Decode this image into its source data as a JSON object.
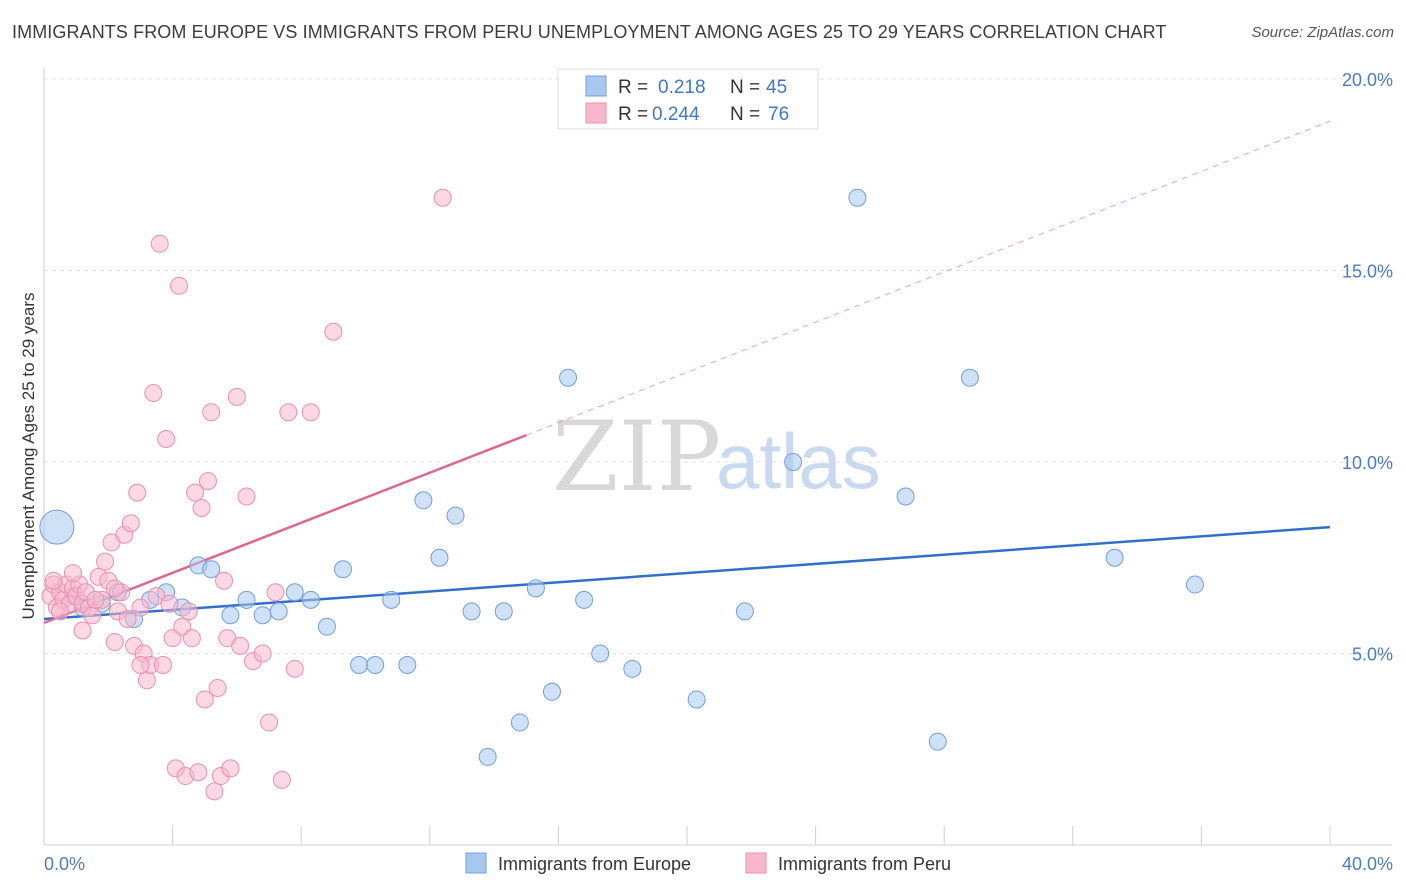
{
  "title": "IMMIGRANTS FROM EUROPE VS IMMIGRANTS FROM PERU UNEMPLOYMENT AMONG AGES 25 TO 29 YEARS CORRELATION CHART",
  "source": "Source: ZipAtlas.com",
  "watermark": {
    "zip": "ZIP",
    "atlas": "atlas"
  },
  "legend_top": {
    "rows": [
      {
        "r_label": "R =",
        "r_value": "0.218",
        "n_label": "N =",
        "n_value": "45",
        "color": "#a8c8f0"
      },
      {
        "r_label": "R =",
        "r_value": "0.244",
        "n_label": "N =",
        "n_value": "76",
        "color": "#f7b8cc"
      }
    ]
  },
  "chart_data": {
    "type": "scatter",
    "title": "IMMIGRANTS FROM EUROPE VS IMMIGRANTS FROM PERU UNEMPLOYMENT AMONG AGES 25 TO 29 YEARS CORRELATION CHART",
    "xlabel": "",
    "ylabel": "Unemployment Among Ages 25 to 29 years",
    "xlim": [
      0,
      40
    ],
    "ylim": [
      0,
      20
    ],
    "x_tick_labels": [
      "0.0%",
      "40.0%"
    ],
    "y_ticks": [
      5,
      10,
      15,
      20
    ],
    "y_tick_labels": [
      "5.0%",
      "10.0%",
      "15.0%",
      "20.0%"
    ],
    "grid": true,
    "legend_position": "top-center",
    "series": [
      {
        "name": "Immigrants from Europe",
        "color": "#a8c8f0",
        "stroke": "#6f9fe0",
        "trend": {
          "x": [
            0,
            40
          ],
          "y": [
            5.9,
            8.3
          ],
          "color": "#3070c8"
        },
        "points": [
          {
            "x": 0.4,
            "y": 8.3,
            "big": true
          },
          {
            "x": 1.2,
            "y": 6.2
          },
          {
            "x": 1.8,
            "y": 6.3
          },
          {
            "x": 2.3,
            "y": 6.6
          },
          {
            "x": 2.8,
            "y": 5.9
          },
          {
            "x": 3.3,
            "y": 6.4
          },
          {
            "x": 3.8,
            "y": 6.6
          },
          {
            "x": 4.3,
            "y": 6.2
          },
          {
            "x": 4.8,
            "y": 7.3
          },
          {
            "x": 5.2,
            "y": 7.2
          },
          {
            "x": 5.8,
            "y": 6.0
          },
          {
            "x": 6.3,
            "y": 6.4
          },
          {
            "x": 6.8,
            "y": 6.0
          },
          {
            "x": 7.3,
            "y": 6.1
          },
          {
            "x": 7.8,
            "y": 6.6
          },
          {
            "x": 8.3,
            "y": 6.4
          },
          {
            "x": 8.8,
            "y": 5.7
          },
          {
            "x": 9.3,
            "y": 7.2
          },
          {
            "x": 9.8,
            "y": 4.7
          },
          {
            "x": 10.3,
            "y": 4.7
          },
          {
            "x": 10.8,
            "y": 6.4
          },
          {
            "x": 11.3,
            "y": 4.7
          },
          {
            "x": 11.8,
            "y": 9.0
          },
          {
            "x": 12.3,
            "y": 7.5
          },
          {
            "x": 12.8,
            "y": 8.6
          },
          {
            "x": 13.3,
            "y": 6.1
          },
          {
            "x": 13.8,
            "y": 2.3
          },
          {
            "x": 14.3,
            "y": 6.1
          },
          {
            "x": 14.8,
            "y": 3.2
          },
          {
            "x": 15.3,
            "y": 6.7
          },
          {
            "x": 15.8,
            "y": 4.0
          },
          {
            "x": 16.3,
            "y": 12.2
          },
          {
            "x": 16.8,
            "y": 6.4
          },
          {
            "x": 17.3,
            "y": 5.0
          },
          {
            "x": 18.3,
            "y": 4.6
          },
          {
            "x": 20.3,
            "y": 3.8
          },
          {
            "x": 21.8,
            "y": 6.1
          },
          {
            "x": 23.3,
            "y": 10.0
          },
          {
            "x": 25.3,
            "y": 16.9
          },
          {
            "x": 26.8,
            "y": 9.1
          },
          {
            "x": 27.8,
            "y": 2.7
          },
          {
            "x": 28.8,
            "y": 12.2
          },
          {
            "x": 33.3,
            "y": 7.5
          },
          {
            "x": 35.8,
            "y": 6.8
          },
          {
            "x": 0.9,
            "y": 6.5
          }
        ]
      },
      {
        "name": "Immigrants from Peru",
        "color": "#f7b8cc",
        "stroke": "#ec8fae",
        "trend": {
          "x": [
            0,
            15
          ],
          "y": [
            5.8,
            10.7
          ],
          "color": "#e06690",
          "dash_to": {
            "x": 40,
            "y": 18.9
          }
        },
        "points": [
          {
            "x": 0.2,
            "y": 6.5
          },
          {
            "x": 0.3,
            "y": 6.8
          },
          {
            "x": 0.4,
            "y": 6.2
          },
          {
            "x": 0.5,
            "y": 6.6
          },
          {
            "x": 0.6,
            "y": 6.4
          },
          {
            "x": 0.7,
            "y": 6.8
          },
          {
            "x": 0.8,
            "y": 6.3
          },
          {
            "x": 0.9,
            "y": 6.7
          },
          {
            "x": 1.0,
            "y": 6.5
          },
          {
            "x": 1.1,
            "y": 6.8
          },
          {
            "x": 1.2,
            "y": 6.3
          },
          {
            "x": 1.3,
            "y": 6.6
          },
          {
            "x": 0.5,
            "y": 6.1
          },
          {
            "x": 0.9,
            "y": 7.1
          },
          {
            "x": 1.4,
            "y": 6.2
          },
          {
            "x": 1.5,
            "y": 6.0
          },
          {
            "x": 1.2,
            "y": 5.6
          },
          {
            "x": 1.7,
            "y": 7.0
          },
          {
            "x": 1.8,
            "y": 6.4
          },
          {
            "x": 1.9,
            "y": 7.4
          },
          {
            "x": 2.0,
            "y": 6.9
          },
          {
            "x": 2.1,
            "y": 7.9
          },
          {
            "x": 2.2,
            "y": 5.3
          },
          {
            "x": 2.3,
            "y": 6.1
          },
          {
            "x": 2.4,
            "y": 6.6
          },
          {
            "x": 2.5,
            "y": 8.1
          },
          {
            "x": 2.6,
            "y": 5.9
          },
          {
            "x": 2.7,
            "y": 8.4
          },
          {
            "x": 2.8,
            "y": 5.2
          },
          {
            "x": 2.9,
            "y": 9.2
          },
          {
            "x": 3.0,
            "y": 6.2
          },
          {
            "x": 3.1,
            "y": 5.0
          },
          {
            "x": 3.2,
            "y": 4.3
          },
          {
            "x": 3.3,
            "y": 4.7
          },
          {
            "x": 3.4,
            "y": 11.8
          },
          {
            "x": 3.5,
            "y": 6.5
          },
          {
            "x": 3.6,
            "y": 15.7
          },
          {
            "x": 3.7,
            "y": 4.7
          },
          {
            "x": 3.8,
            "y": 10.6
          },
          {
            "x": 3.9,
            "y": 6.3
          },
          {
            "x": 4.0,
            "y": 5.4
          },
          {
            "x": 4.1,
            "y": 2.0
          },
          {
            "x": 4.2,
            "y": 14.6
          },
          {
            "x": 4.3,
            "y": 5.7
          },
          {
            "x": 4.4,
            "y": 1.8
          },
          {
            "x": 4.5,
            "y": 6.1
          },
          {
            "x": 4.6,
            "y": 5.4
          },
          {
            "x": 4.7,
            "y": 9.2
          },
          {
            "x": 4.8,
            "y": 1.9
          },
          {
            "x": 4.9,
            "y": 8.8
          },
          {
            "x": 5.0,
            "y": 3.8
          },
          {
            "x": 5.1,
            "y": 9.5
          },
          {
            "x": 5.2,
            "y": 11.3
          },
          {
            "x": 5.3,
            "y": 1.4
          },
          {
            "x": 5.4,
            "y": 4.1
          },
          {
            "x": 5.5,
            "y": 1.8
          },
          {
            "x": 5.6,
            "y": 6.9
          },
          {
            "x": 5.7,
            "y": 5.4
          },
          {
            "x": 5.8,
            "y": 2.0
          },
          {
            "x": 6.0,
            "y": 11.7
          },
          {
            "x": 6.1,
            "y": 5.2
          },
          {
            "x": 6.3,
            "y": 9.1
          },
          {
            "x": 6.5,
            "y": 4.8
          },
          {
            "x": 6.8,
            "y": 5.0
          },
          {
            "x": 7.0,
            "y": 3.2
          },
          {
            "x": 7.2,
            "y": 6.6
          },
          {
            "x": 7.4,
            "y": 1.7
          },
          {
            "x": 7.6,
            "y": 11.3
          },
          {
            "x": 7.8,
            "y": 4.6
          },
          {
            "x": 8.3,
            "y": 11.3
          },
          {
            "x": 9.0,
            "y": 13.4
          },
          {
            "x": 12.4,
            "y": 16.9
          },
          {
            "x": 3.0,
            "y": 4.7
          },
          {
            "x": 2.2,
            "y": 6.7
          },
          {
            "x": 1.6,
            "y": 6.4
          },
          {
            "x": 0.3,
            "y": 6.9
          }
        ]
      }
    ]
  },
  "bottom_legend": [
    {
      "label": "Immigrants from Europe",
      "color": "#a8c8f0"
    },
    {
      "label": "Immigrants from Peru",
      "color": "#f7b8cc"
    }
  ]
}
